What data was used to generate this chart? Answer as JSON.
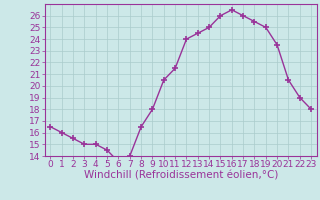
{
  "x": [
    0,
    1,
    2,
    3,
    4,
    5,
    6,
    7,
    8,
    9,
    10,
    11,
    12,
    13,
    14,
    15,
    16,
    17,
    18,
    19,
    20,
    21,
    22,
    23
  ],
  "y": [
    16.5,
    16.0,
    15.5,
    15.0,
    15.0,
    14.5,
    13.5,
    14.0,
    16.5,
    18.0,
    20.5,
    21.5,
    24.0,
    24.5,
    25.0,
    26.0,
    26.5,
    26.0,
    25.5,
    25.0,
    23.5,
    20.5,
    19.0,
    18.0
  ],
  "line_color": "#993399",
  "marker": "+",
  "marker_size": 4,
  "marker_lw": 1.2,
  "bg_color": "#cce8e8",
  "grid_color": "#aacccc",
  "xlabel": "Windchill (Refroidissement éolien,°C)",
  "xlim": [
    -0.5,
    23.5
  ],
  "ylim": [
    14,
    27
  ],
  "yticks": [
    14,
    15,
    16,
    17,
    18,
    19,
    20,
    21,
    22,
    23,
    24,
    25,
    26
  ],
  "xticks": [
    0,
    1,
    2,
    3,
    4,
    5,
    6,
    7,
    8,
    9,
    10,
    11,
    12,
    13,
    14,
    15,
    16,
    17,
    18,
    19,
    20,
    21,
    22,
    23
  ],
  "xtick_labels": [
    "0",
    "1",
    "2",
    "3",
    "4",
    "5",
    "6",
    "7",
    "8",
    "9",
    "10",
    "11",
    "12",
    "13",
    "14",
    "15",
    "16",
    "17",
    "18",
    "19",
    "20",
    "21",
    "22",
    "23"
  ],
  "tick_fontsize": 6.5,
  "xlabel_fontsize": 7.5,
  "line_width": 1.0
}
